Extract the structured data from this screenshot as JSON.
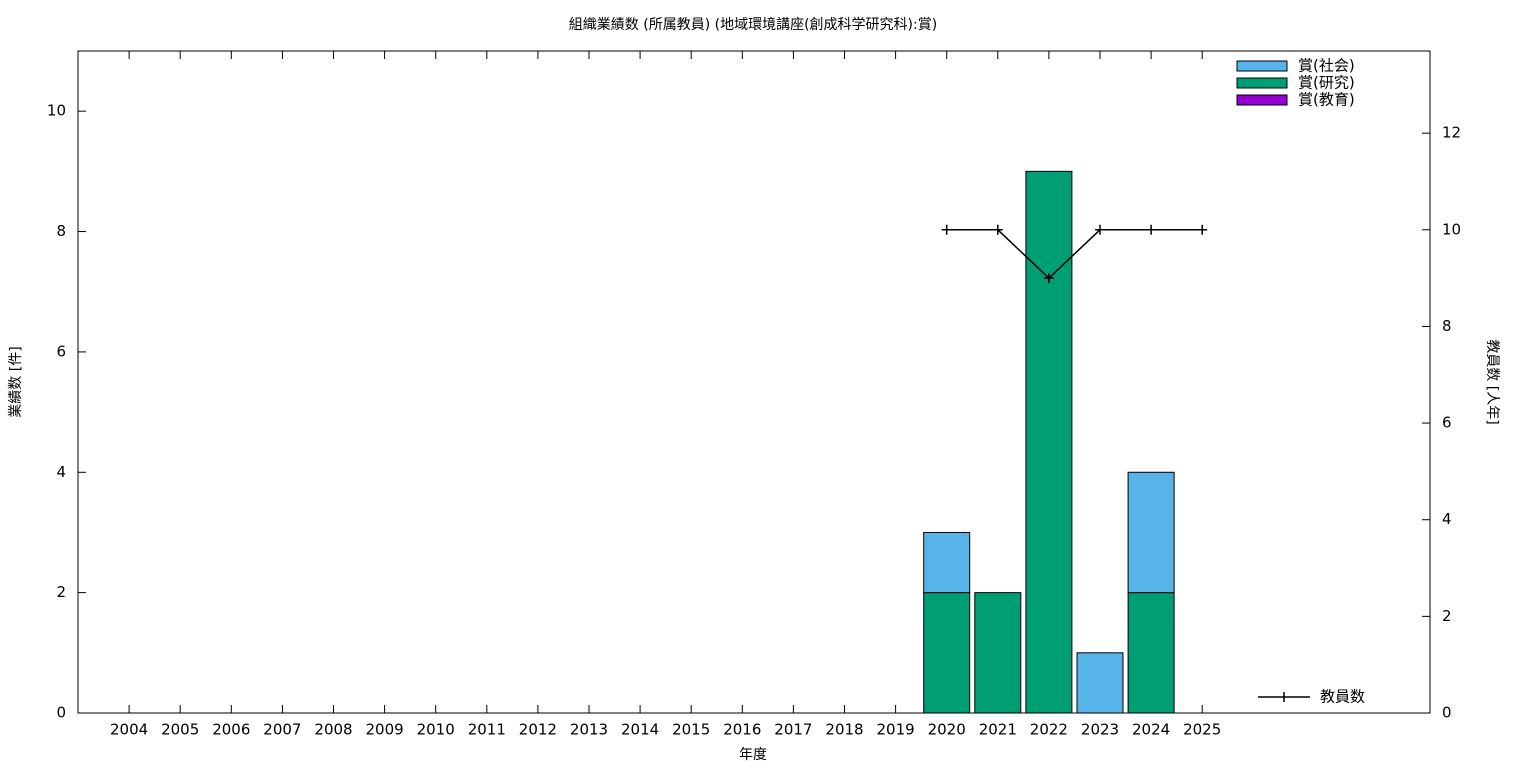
{
  "chart_data": {
    "type": "bar",
    "stacked": true,
    "title": "組織業績数 (所属教員) (地域環境講座(創成科学研究科):賞)",
    "xlabel": "年度",
    "ylabel": "業績数 [件]",
    "y2label": "教員数 [人年]",
    "categories": [
      "2004",
      "2005",
      "2006",
      "2007",
      "2008",
      "2009",
      "2010",
      "2011",
      "2012",
      "2013",
      "2014",
      "2015",
      "2016",
      "2017",
      "2018",
      "2019",
      "2020",
      "2021",
      "2022",
      "2023",
      "2024",
      "2025"
    ],
    "series": [
      {
        "name": "賞(社会)",
        "color": "#56b4e9",
        "values": [
          0,
          0,
          0,
          0,
          0,
          0,
          0,
          0,
          0,
          0,
          0,
          0,
          0,
          0,
          0,
          0,
          1,
          0,
          0,
          1,
          2,
          0
        ]
      },
      {
        "name": "賞(研究)",
        "color": "#009e73",
        "values": [
          0,
          0,
          0,
          0,
          0,
          0,
          0,
          0,
          0,
          0,
          0,
          0,
          0,
          0,
          0,
          0,
          2,
          2,
          9,
          0,
          2,
          0
        ]
      },
      {
        "name": "賞(教育)",
        "color": "#9400d3",
        "values": [
          0,
          0,
          0,
          0,
          0,
          0,
          0,
          0,
          0,
          0,
          0,
          0,
          0,
          0,
          0,
          0,
          0,
          0,
          0,
          0,
          0,
          0
        ]
      },
      {
        "name": "教員数",
        "type": "line",
        "axis": "y2",
        "color": "#000000",
        "values": [
          null,
          null,
          null,
          null,
          null,
          null,
          null,
          null,
          null,
          null,
          null,
          null,
          null,
          null,
          null,
          null,
          10,
          10,
          9,
          10,
          10,
          10
        ]
      }
    ],
    "ylim": [
      0,
      11
    ],
    "yticks": [
      0,
      2,
      4,
      6,
      8,
      10
    ],
    "y2lim": [
      0,
      13.7
    ],
    "y2ticks": [
      0,
      2,
      4,
      6,
      8,
      10,
      12
    ],
    "grid": false
  }
}
